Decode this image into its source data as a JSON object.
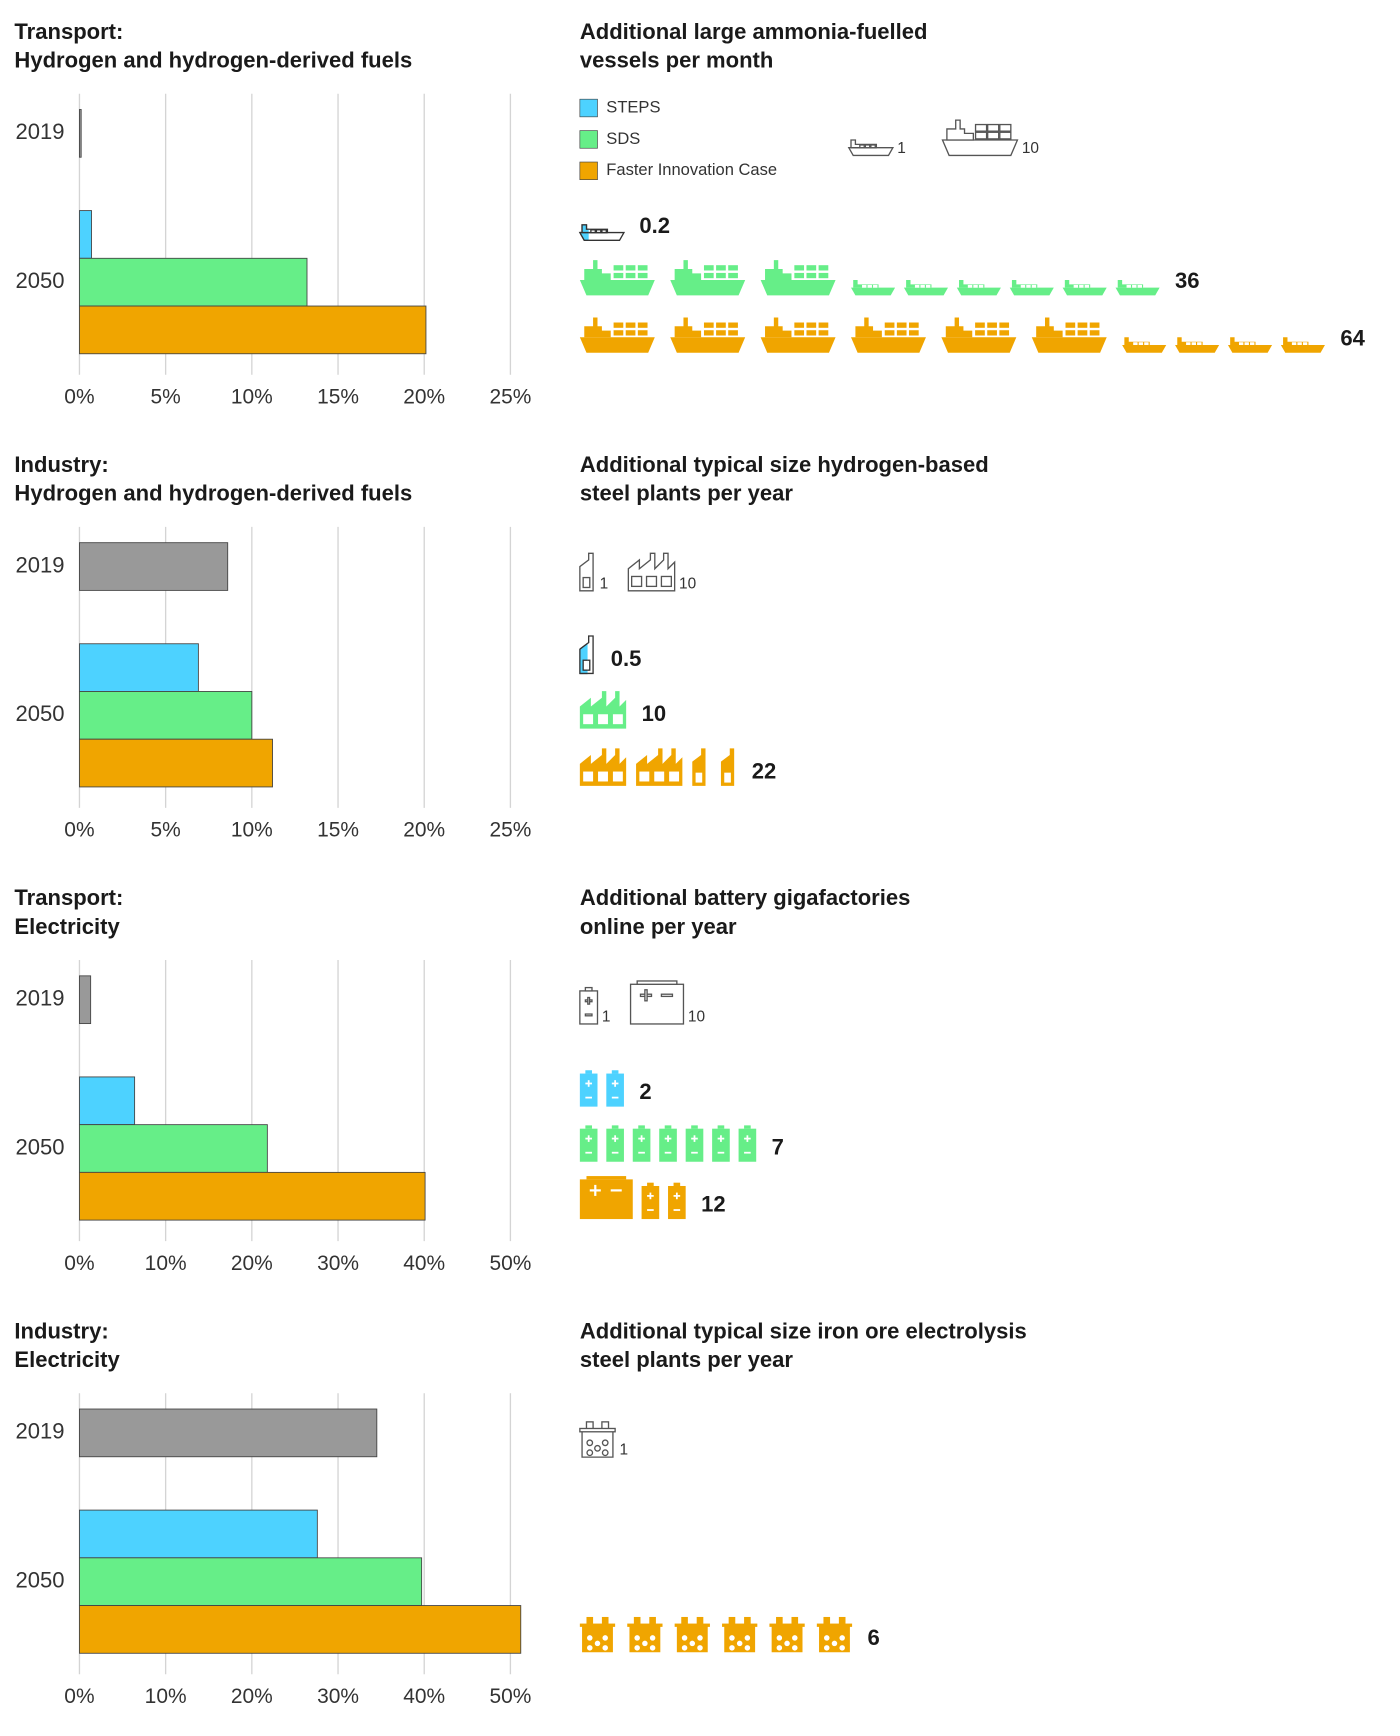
{
  "chart_data": [
    {
      "type": "bar",
      "orientation": "horizontal",
      "title": [
        "Transport:",
        "Hydrogen and hydrogen-derived fuels"
      ],
      "categories": [
        "2019",
        "2050"
      ],
      "series": [
        {
          "color": "#999999",
          "values": [
            0.1,
            null
          ]
        },
        {
          "name": "STEPS",
          "color": "#4dd2ff",
          "values": [
            null,
            0.7
          ]
        },
        {
          "name": "SDS",
          "color": "#66ee88",
          "values": [
            null,
            13.2
          ]
        },
        {
          "name": "Faster Innovation Case",
          "color": "#f0a500",
          "values": [
            null,
            20.1
          ]
        }
      ],
      "xlim": [
        0,
        25
      ],
      "xticks": [
        {
          "value": 0,
          "label": "0%"
        },
        {
          "value": 5,
          "label": "5%"
        },
        {
          "value": 10,
          "label": "10%"
        },
        {
          "value": 15,
          "label": "15%"
        },
        {
          "value": 20,
          "label": "20%"
        },
        {
          "value": 25,
          "label": "25%"
        }
      ],
      "grid": true,
      "legend": true,
      "icon_panel": {
        "title": [
          "Additional large ammonia-fuelled",
          "vessels per month"
        ],
        "icon": "ship",
        "key": [
          1,
          10
        ],
        "values": [
          0.2,
          36,
          64
        ]
      }
    },
    {
      "type": "bar",
      "orientation": "horizontal",
      "title": [
        "Industry:",
        "Hydrogen and hydrogen-derived fuels"
      ],
      "categories": [
        "2019",
        "2050"
      ],
      "series": [
        {
          "color": "#999999",
          "values": [
            8.6,
            null
          ]
        },
        {
          "name": "STEPS",
          "color": "#4dd2ff",
          "values": [
            null,
            6.9
          ]
        },
        {
          "name": "SDS",
          "color": "#66ee88",
          "values": [
            null,
            10.0
          ]
        },
        {
          "name": "Faster Innovation Case",
          "color": "#f0a500",
          "values": [
            null,
            11.2
          ]
        }
      ],
      "xlim": [
        0,
        25
      ],
      "xticks": [
        {
          "value": 0,
          "label": "0%"
        },
        {
          "value": 5,
          "label": "5%"
        },
        {
          "value": 10,
          "label": "10%"
        },
        {
          "value": 15,
          "label": "15%"
        },
        {
          "value": 20,
          "label": "20%"
        },
        {
          "value": 25,
          "label": "25%"
        }
      ],
      "grid": true,
      "legend": false,
      "icon_panel": {
        "title": [
          "Additional typical size hydrogen-based",
          "steel plants per year"
        ],
        "icon": "plant",
        "key": [
          1,
          10
        ],
        "values": [
          0.5,
          10,
          22
        ]
      }
    },
    {
      "type": "bar",
      "orientation": "horizontal",
      "title": [
        "Transport:",
        "Electricity"
      ],
      "categories": [
        "2019",
        "2050"
      ],
      "series": [
        {
          "color": "#999999",
          "values": [
            1.3,
            null
          ]
        },
        {
          "name": "STEPS",
          "color": "#4dd2ff",
          "values": [
            null,
            6.4
          ]
        },
        {
          "name": "SDS",
          "color": "#66ee88",
          "values": [
            null,
            21.8
          ]
        },
        {
          "name": "Faster Innovation Case",
          "color": "#f0a500",
          "values": [
            null,
            40.1
          ]
        }
      ],
      "xlim": [
        0,
        50
      ],
      "xticks": [
        {
          "value": 0,
          "label": "0%"
        },
        {
          "value": 10,
          "label": "10%"
        },
        {
          "value": 20,
          "label": "20%"
        },
        {
          "value": 30,
          "label": "30%"
        },
        {
          "value": 40,
          "label": "40%"
        },
        {
          "value": 50,
          "label": "50%"
        }
      ],
      "grid": true,
      "legend": false,
      "icon_panel": {
        "title": [
          "Additional battery gigafactories",
          "online per year"
        ],
        "icon": "battery",
        "key": [
          1,
          10
        ],
        "values": [
          2,
          7,
          12
        ]
      }
    },
    {
      "type": "bar",
      "orientation": "horizontal",
      "title": [
        "Industry:",
        "Electricity"
      ],
      "categories": [
        "2019",
        "2050"
      ],
      "series": [
        {
          "color": "#999999",
          "values": [
            34.5,
            null
          ]
        },
        {
          "name": "STEPS",
          "color": "#4dd2ff",
          "values": [
            null,
            27.6
          ]
        },
        {
          "name": "SDS",
          "color": "#66ee88",
          "values": [
            null,
            39.7
          ]
        },
        {
          "name": "Faster Innovation Case",
          "color": "#f0a500",
          "values": [
            null,
            51.2
          ]
        }
      ],
      "xlim": [
        0,
        50
      ],
      "xticks": [
        {
          "value": 0,
          "label": "0%"
        },
        {
          "value": 10,
          "label": "10%"
        },
        {
          "value": 20,
          "label": "20%"
        },
        {
          "value": 30,
          "label": "30%"
        },
        {
          "value": 40,
          "label": "40%"
        },
        {
          "value": 50,
          "label": "50%"
        }
      ],
      "grid": true,
      "legend": false,
      "icon_panel": {
        "title": [
          "Additional typical size iron ore electrolysis",
          "steel plants per year"
        ],
        "icon": "electrolyser",
        "key": [
          1
        ],
        "values": [
          null,
          null,
          6
        ]
      }
    }
  ]
}
